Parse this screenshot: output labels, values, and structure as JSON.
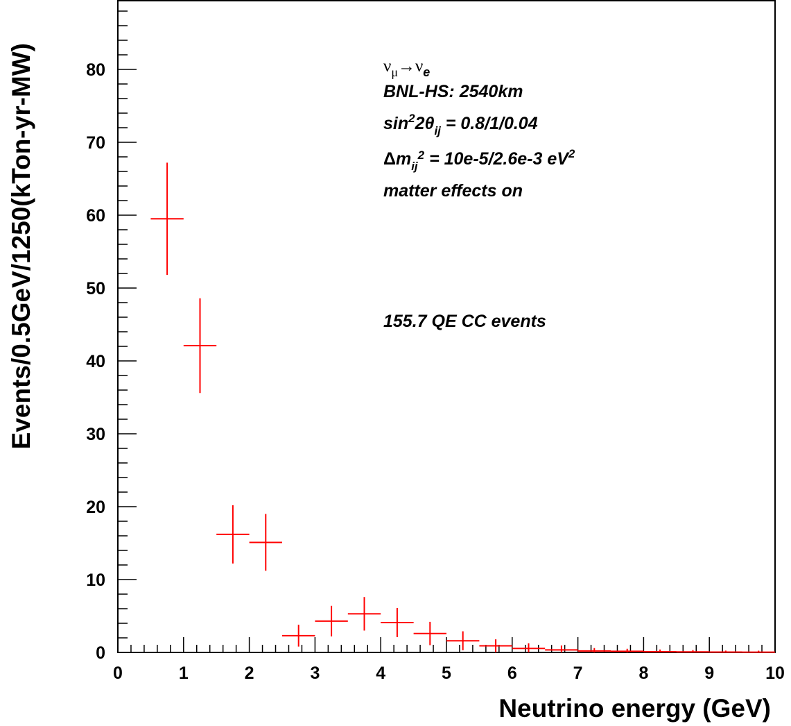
{
  "chart_data": {
    "type": "scatter",
    "xlabel": "Neutrino energy (GeV)",
    "ylabel": "Events/0.5GeV/1250(kTon-yr-MW)",
    "xlim": [
      0,
      10
    ],
    "ylim": [
      0,
      88
    ],
    "x_ticks": [
      "0",
      "1",
      "2",
      "3",
      "4",
      "5",
      "6",
      "7",
      "8",
      "9",
      "10"
    ],
    "y_ticks": [
      "0",
      "10",
      "20",
      "30",
      "40",
      "50",
      "60",
      "70",
      "80"
    ],
    "grid": false,
    "bin_width": 0.5,
    "x": [
      0.75,
      1.25,
      1.75,
      2.25,
      2.75,
      3.25,
      3.75,
      4.25,
      4.75,
      5.25,
      5.75,
      6.25,
      6.75,
      7.25,
      7.75,
      8.25,
      8.75,
      9.25,
      9.75
    ],
    "values": [
      59.5,
      42.1,
      16.2,
      15.1,
      2.3,
      4.3,
      5.3,
      4.1,
      2.6,
      1.6,
      0.9,
      0.55,
      0.35,
      0.2,
      0.15,
      0.1,
      0.07,
      0.05,
      0.04
    ],
    "errors": [
      7.7,
      6.5,
      4.0,
      3.9,
      1.5,
      2.1,
      2.3,
      2.0,
      1.6,
      1.3,
      0.9,
      0.7,
      0.6,
      0.4,
      0.35,
      0.3,
      0.25,
      0.2,
      0.2
    ],
    "series_color": "#ff0000",
    "annotations": {
      "process": {
        "nu1": "ν",
        "sub1": "μ",
        "arrow": "→",
        "nu2": "ν",
        "sub2": "e"
      },
      "baseline": "BNL-HS: 2540km",
      "mixing": {
        "pre": "sin",
        "sup": "2",
        "mid": "2θ",
        "sub": "ij",
        "post": " = 0.8/1/0.04"
      },
      "mass": {
        "delta": "Δ",
        "m": "m",
        "sub": "ij",
        "sup": "2",
        "post": " = 10e-5/2.6e-3 eV",
        "unit_sup": "2"
      },
      "matter": "matter effects on",
      "events": "155.7 QE CC events"
    }
  }
}
